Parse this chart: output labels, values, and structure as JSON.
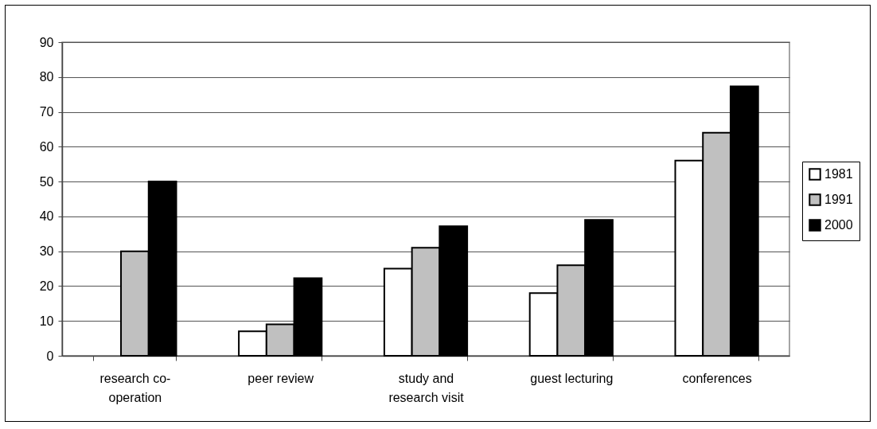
{
  "chart_data": {
    "type": "bar",
    "categories": [
      "research co-operation",
      "peer review",
      "study and research visit",
      "guest lecturing",
      "conferences"
    ],
    "series": [
      {
        "name": "1981",
        "color": "#ffffff",
        "values": [
          null,
          7,
          25,
          18,
          56
        ]
      },
      {
        "name": "1991",
        "color": "#c0c0c0",
        "values": [
          30,
          9,
          31,
          26,
          64
        ]
      },
      {
        "name": "2000",
        "color": "#000000",
        "values": [
          50,
          22.3,
          37.2,
          39,
          77.3
        ]
      }
    ],
    "ylim": [
      0,
      90
    ],
    "yticks": [
      0,
      10,
      20,
      30,
      40,
      50,
      60,
      70,
      80,
      90
    ],
    "grid": "y",
    "legend": "right"
  }
}
